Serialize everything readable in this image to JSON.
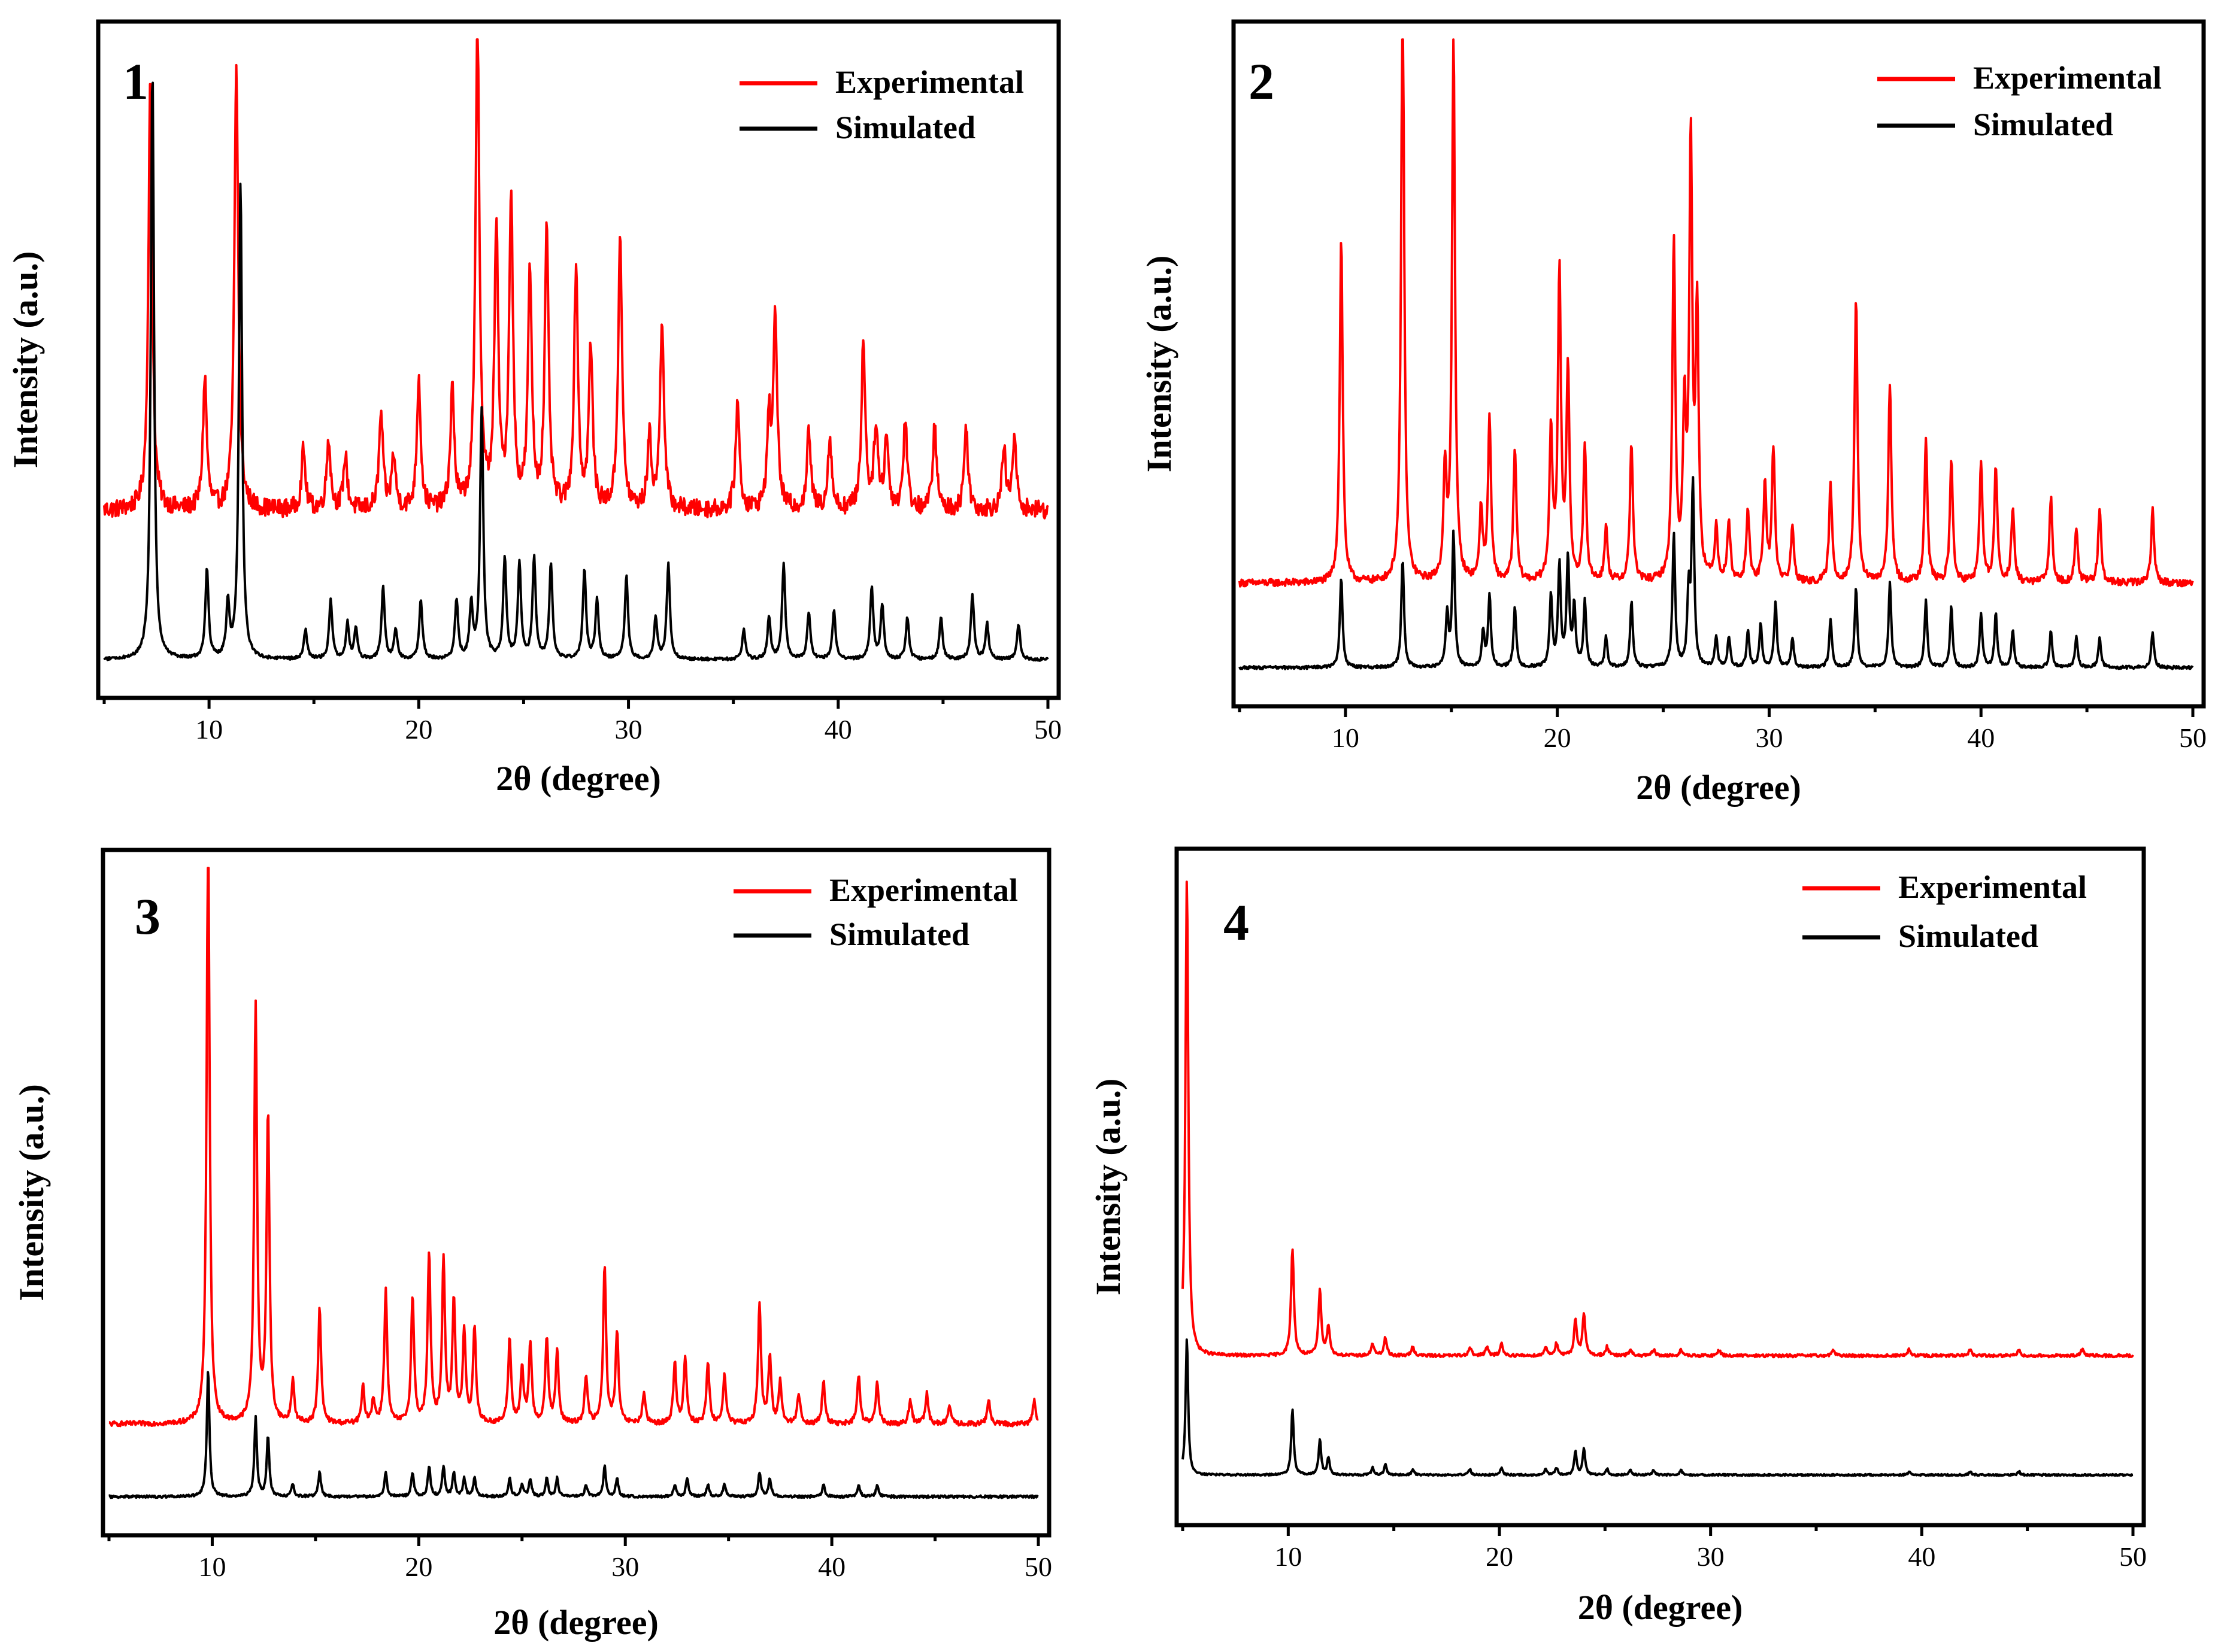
{
  "chart_data": [
    {
      "type": "line",
      "panel_label": "1",
      "xlabel": "2θ (degree)",
      "ylabel": "Intensity (a.u.)",
      "xlim": [
        5,
        50
      ],
      "xticks": [
        10,
        20,
        30,
        40,
        50
      ],
      "ylim": [
        0,
        110
      ],
      "legend": {
        "position": "top-right"
      },
      "series": [
        {
          "name": "Experimental",
          "color": "#ff0000",
          "baseline": 30,
          "noise": 1.5,
          "width": 0.11,
          "peaks": [
            [
              7.2,
              72
            ],
            [
              9.8,
              22
            ],
            [
              11.3,
              74
            ],
            [
              14.5,
              10
            ],
            [
              15.7,
              12
            ],
            [
              16.5,
              9
            ],
            [
              18.2,
              16
            ],
            [
              18.8,
              9
            ],
            [
              20.0,
              22
            ],
            [
              21.6,
              20
            ],
            [
              22.8,
              82
            ],
            [
              23.7,
              46
            ],
            [
              24.4,
              52
            ],
            [
              25.3,
              39
            ],
            [
              26.1,
              46
            ],
            [
              27.5,
              40
            ],
            [
              28.2,
              27
            ],
            [
              29.6,
              46
            ],
            [
              31.0,
              12
            ],
            [
              31.6,
              32
            ],
            [
              35.2,
              18
            ],
            [
              36.7,
              14
            ],
            [
              37.0,
              32
            ],
            [
              38.6,
              13
            ],
            [
              39.6,
              12
            ],
            [
              41.2,
              28
            ],
            [
              41.8,
              14
            ],
            [
              42.3,
              12
            ],
            [
              43.2,
              15
            ],
            [
              44.6,
              14
            ],
            [
              46.1,
              14
            ],
            [
              47.9,
              10
            ],
            [
              48.4,
              12
            ]
          ]
        },
        {
          "name": "Simulated",
          "color": "#000000",
          "baseline": 5,
          "noise": 0.25,
          "width": 0.09,
          "peaks": [
            [
              7.3,
              99
            ],
            [
              9.9,
              15
            ],
            [
              10.9,
              9
            ],
            [
              11.5,
              80
            ],
            [
              14.6,
              5
            ],
            [
              15.8,
              10
            ],
            [
              16.6,
              6
            ],
            [
              17.0,
              5
            ],
            [
              18.3,
              12
            ],
            [
              18.9,
              5
            ],
            [
              20.1,
              10
            ],
            [
              21.8,
              10
            ],
            [
              22.5,
              9
            ],
            [
              23.0,
              42
            ],
            [
              24.1,
              17
            ],
            [
              24.8,
              16
            ],
            [
              25.5,
              17
            ],
            [
              26.3,
              16
            ],
            [
              27.9,
              15
            ],
            [
              28.5,
              10
            ],
            [
              29.9,
              14
            ],
            [
              31.3,
              7
            ],
            [
              31.9,
              16
            ],
            [
              35.5,
              5
            ],
            [
              36.7,
              7
            ],
            [
              37.4,
              16
            ],
            [
              38.6,
              8
            ],
            [
              39.8,
              8
            ],
            [
              41.6,
              12
            ],
            [
              42.1,
              9
            ],
            [
              43.3,
              7
            ],
            [
              44.9,
              7
            ],
            [
              46.4,
              11
            ],
            [
              47.1,
              6
            ],
            [
              48.6,
              6
            ]
          ]
        }
      ]
    },
    {
      "type": "line",
      "panel_label": "2",
      "xlabel": "2θ (degree)",
      "ylabel": "Intensity (a.u.)",
      "xlim": [
        5,
        50
      ],
      "xticks": [
        10,
        20,
        30,
        40,
        50
      ],
      "ylim": [
        0,
        110
      ],
      "legend": {
        "position": "top-right"
      },
      "series": [
        {
          "name": "Experimental",
          "color": "#ff0000",
          "baseline": 19,
          "noise": 0.6,
          "width": 0.085,
          "peaks": [
            [
              9.8,
              57
            ],
            [
              12.7,
              100
            ],
            [
              14.7,
              18
            ],
            [
              15.1,
              90
            ],
            [
              16.4,
              12
            ],
            [
              16.8,
              27
            ],
            [
              18.0,
              22
            ],
            [
              19.7,
              25
            ],
            [
              20.1,
              51
            ],
            [
              20.5,
              35
            ],
            [
              21.3,
              22
            ],
            [
              22.3,
              9
            ],
            [
              23.5,
              23
            ],
            [
              25.5,
              56
            ],
            [
              26.0,
              27
            ],
            [
              26.3,
              72
            ],
            [
              26.6,
              44
            ],
            [
              27.5,
              9
            ],
            [
              28.1,
              10
            ],
            [
              29.0,
              12
            ],
            [
              29.8,
              16
            ],
            [
              30.2,
              22
            ],
            [
              31.1,
              9
            ],
            [
              32.9,
              16
            ],
            [
              34.1,
              47
            ],
            [
              35.7,
              33
            ],
            [
              37.4,
              24
            ],
            [
              38.6,
              20
            ],
            [
              40.0,
              20
            ],
            [
              40.7,
              19
            ],
            [
              41.5,
              12
            ],
            [
              43.3,
              14
            ],
            [
              44.5,
              9
            ],
            [
              45.6,
              12
            ],
            [
              48.1,
              12
            ]
          ]
        },
        {
          "name": "Simulated",
          "color": "#000000",
          "baseline": 5,
          "noise": 0.25,
          "width": 0.075,
          "peaks": [
            [
              9.8,
              15
            ],
            [
              12.7,
              18
            ],
            [
              14.8,
              9
            ],
            [
              15.1,
              22
            ],
            [
              16.5,
              6
            ],
            [
              16.8,
              12
            ],
            [
              18.0,
              10
            ],
            [
              19.7,
              12
            ],
            [
              20.1,
              17
            ],
            [
              20.5,
              18
            ],
            [
              20.8,
              10
            ],
            [
              21.3,
              11
            ],
            [
              22.3,
              5
            ],
            [
              23.5,
              11
            ],
            [
              25.5,
              22
            ],
            [
              26.2,
              12
            ],
            [
              26.4,
              30
            ],
            [
              27.5,
              5
            ],
            [
              28.1,
              5
            ],
            [
              29.0,
              6
            ],
            [
              29.6,
              7
            ],
            [
              30.3,
              11
            ],
            [
              31.1,
              5
            ],
            [
              32.9,
              8
            ],
            [
              34.1,
              13
            ],
            [
              35.7,
              14
            ],
            [
              37.4,
              11
            ],
            [
              38.6,
              10
            ],
            [
              40.0,
              9
            ],
            [
              40.7,
              9
            ],
            [
              41.5,
              6
            ],
            [
              43.3,
              6
            ],
            [
              44.5,
              5
            ],
            [
              45.6,
              5
            ],
            [
              48.1,
              6
            ]
          ]
        }
      ]
    },
    {
      "type": "line",
      "panel_label": "3",
      "xlabel": "2θ (degree)",
      "ylabel": "Intensity (a.u.)",
      "xlim": [
        5,
        50
      ],
      "xticks": [
        10,
        20,
        30,
        40,
        50
      ],
      "ylim": [
        0,
        110
      ],
      "legend": {
        "position": "top-right"
      },
      "series": [
        {
          "name": "Experimental",
          "color": "#ff0000",
          "baseline": 17,
          "noise": 0.4,
          "width": 0.085,
          "peaks": [
            [
              9.8,
              100
            ],
            [
              12.1,
              69
            ],
            [
              12.7,
              51
            ],
            [
              13.9,
              7
            ],
            [
              15.2,
              19
            ],
            [
              17.3,
              6
            ],
            [
              17.8,
              4
            ],
            [
              18.4,
              22
            ],
            [
              19.7,
              21
            ],
            [
              20.5,
              28
            ],
            [
              21.2,
              27
            ],
            [
              21.7,
              20
            ],
            [
              22.2,
              15
            ],
            [
              22.7,
              16
            ],
            [
              24.4,
              14
            ],
            [
              25.0,
              9
            ],
            [
              25.4,
              13
            ],
            [
              26.2,
              14
            ],
            [
              26.7,
              12
            ],
            [
              28.1,
              8
            ],
            [
              29.0,
              26
            ],
            [
              29.6,
              15
            ],
            [
              30.9,
              5
            ],
            [
              32.4,
              10
            ],
            [
              32.9,
              11
            ],
            [
              34.0,
              10
            ],
            [
              34.8,
              8
            ],
            [
              36.5,
              20
            ],
            [
              37.0,
              11
            ],
            [
              37.5,
              7
            ],
            [
              38.4,
              5
            ],
            [
              39.6,
              7
            ],
            [
              41.3,
              8
            ],
            [
              42.2,
              7
            ],
            [
              43.8,
              4
            ],
            [
              44.6,
              5
            ],
            [
              45.7,
              3
            ],
            [
              47.6,
              4
            ],
            [
              49.8,
              4
            ]
          ]
        },
        {
          "name": "Simulated",
          "color": "#000000",
          "baseline": 5,
          "noise": 0.2,
          "width": 0.075,
          "peaks": [
            [
              9.8,
              21
            ],
            [
              12.1,
              13
            ],
            [
              12.7,
              10
            ],
            [
              13.9,
              2
            ],
            [
              15.2,
              4
            ],
            [
              18.4,
              4
            ],
            [
              19.7,
              4
            ],
            [
              20.5,
              5
            ],
            [
              21.2,
              5
            ],
            [
              21.7,
              4
            ],
            [
              22.2,
              3
            ],
            [
              22.7,
              3
            ],
            [
              24.4,
              3
            ],
            [
              25.0,
              2
            ],
            [
              25.4,
              3
            ],
            [
              26.2,
              3
            ],
            [
              26.7,
              3
            ],
            [
              28.1,
              2
            ],
            [
              29.0,
              5
            ],
            [
              29.6,
              3
            ],
            [
              32.4,
              2
            ],
            [
              33.0,
              3
            ],
            [
              34.0,
              2
            ],
            [
              34.8,
              2
            ],
            [
              36.5,
              4
            ],
            [
              37.0,
              3
            ],
            [
              39.6,
              2
            ],
            [
              41.3,
              2
            ],
            [
              42.2,
              2
            ]
          ]
        }
      ]
    },
    {
      "type": "line",
      "panel_label": "4",
      "xlabel": "2θ (degree)",
      "ylabel": "Intensity (a.u.)",
      "xlim": [
        5,
        50
      ],
      "xticks": [
        10,
        20,
        30,
        40,
        50
      ],
      "ylim": [
        0,
        110
      ],
      "legend": {
        "position": "top-right"
      },
      "series": [
        {
          "name": "Experimental",
          "color": "#ff0000",
          "baseline": 27,
          "noise": 0.25,
          "width": 0.08,
          "peaks": [
            [
              5.2,
              80
            ],
            [
              10.2,
              18
            ],
            [
              11.5,
              11
            ],
            [
              11.9,
              5
            ],
            [
              14.0,
              2
            ],
            [
              14.6,
              3
            ],
            [
              15.9,
              1.5
            ],
            [
              18.6,
              1.5
            ],
            [
              19.4,
              1.5
            ],
            [
              20.1,
              2
            ],
            [
              22.2,
              1.5
            ],
            [
              22.7,
              2
            ],
            [
              23.6,
              6
            ],
            [
              24.0,
              7
            ],
            [
              25.1,
              1.5
            ],
            [
              26.2,
              1
            ],
            [
              27.3,
              1
            ],
            [
              28.6,
              1
            ],
            [
              30.4,
              1
            ],
            [
              35.8,
              1
            ],
            [
              39.4,
              1
            ],
            [
              42.3,
              1
            ],
            [
              44.6,
              1
            ],
            [
              47.6,
              1
            ]
          ]
        },
        {
          "name": "Simulated",
          "color": "#000000",
          "baseline": 7,
          "noise": 0.15,
          "width": 0.07,
          "peaks": [
            [
              5.2,
              23
            ],
            [
              10.2,
              11
            ],
            [
              11.5,
              6
            ],
            [
              11.9,
              3
            ],
            [
              14.0,
              1.2
            ],
            [
              14.6,
              1.8
            ],
            [
              15.9,
              1
            ],
            [
              18.6,
              1
            ],
            [
              20.1,
              1.2
            ],
            [
              22.2,
              1
            ],
            [
              22.7,
              1.2
            ],
            [
              23.6,
              4
            ],
            [
              24.0,
              4.5
            ],
            [
              25.1,
              1
            ],
            [
              26.2,
              0.8
            ],
            [
              27.3,
              0.8
            ],
            [
              28.6,
              0.8
            ],
            [
              39.4,
              0.6
            ],
            [
              42.3,
              0.6
            ],
            [
              44.6,
              0.6
            ]
          ]
        }
      ]
    }
  ]
}
